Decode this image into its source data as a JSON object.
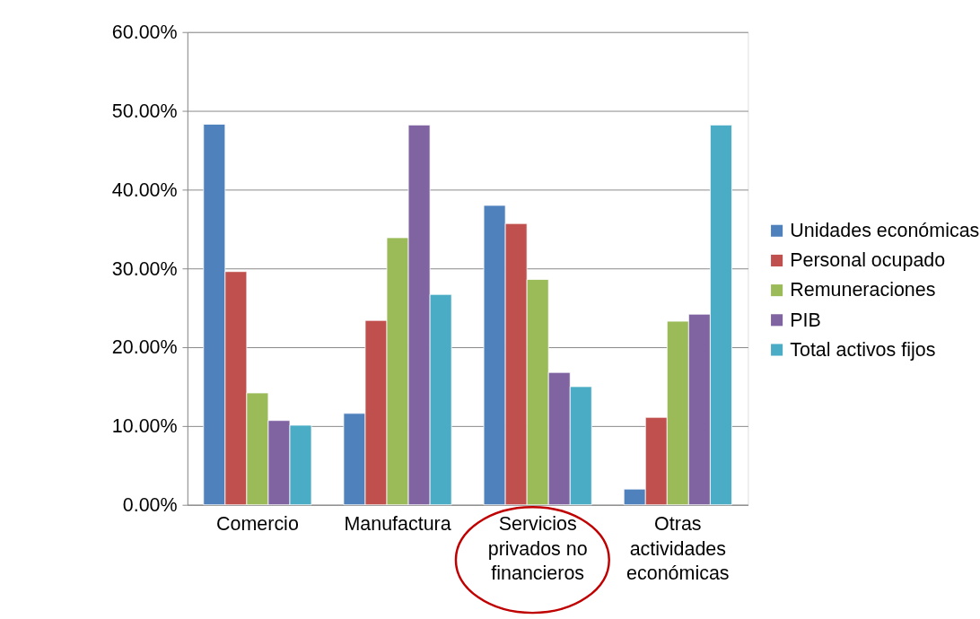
{
  "chart_data": {
    "type": "bar",
    "categories": [
      "Comercio",
      "Manufactura",
      "Servicios privados no financieros",
      "Otras actividades económicas"
    ],
    "series": [
      {
        "name": "Unidades económicas",
        "color": "#4f81bd",
        "values": [
          48.3,
          11.6,
          38.0,
          2.0
        ]
      },
      {
        "name": "Personal ocupado",
        "color": "#c0504d",
        "values": [
          29.6,
          23.4,
          35.7,
          11.1
        ]
      },
      {
        "name": "Remuneraciones",
        "color": "#9bbb59",
        "values": [
          14.2,
          33.9,
          28.6,
          23.3
        ]
      },
      {
        "name": "PIB",
        "color": "#8064a2",
        "values": [
          10.7,
          48.2,
          16.8,
          24.2
        ]
      },
      {
        "name": "Total activos fijos",
        "color": "#4bacc6",
        "values": [
          10.1,
          26.7,
          15.0,
          48.2
        ]
      }
    ],
    "ylim": [
      0,
      60
    ],
    "yticks": [
      {
        "value": 0,
        "label": "0.00%"
      },
      {
        "value": 10,
        "label": "10.00%"
      },
      {
        "value": 20,
        "label": "20.00%"
      },
      {
        "value": 30,
        "label": "30.00%"
      },
      {
        "value": 40,
        "label": "40.00%"
      },
      {
        "value": 50,
        "label": "50.00%"
      },
      {
        "value": 60,
        "label": "60.00%"
      }
    ],
    "grid": "y",
    "legend": "right"
  }
}
